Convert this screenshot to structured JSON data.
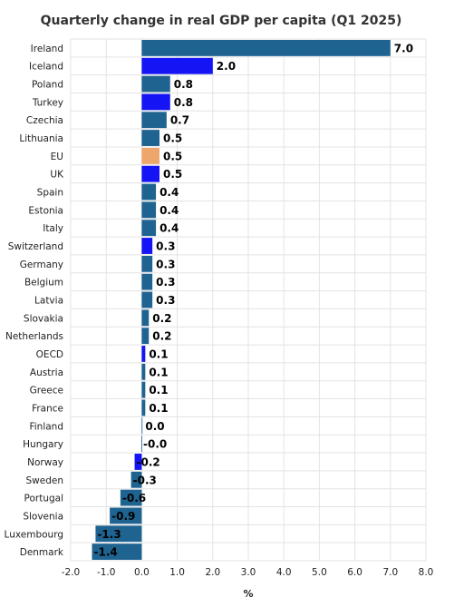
{
  "chart_data": {
    "type": "bar",
    "orientation": "horizontal",
    "title": "Quarterly change in real GDP per capita (Q1 2025)",
    "xlabel": "%",
    "ylabel": "",
    "xlim": [
      -2.0,
      8.0
    ],
    "xticks": [
      "-2.0",
      "-1.0",
      "0.0",
      "1.0",
      "2.0",
      "3.0",
      "4.0",
      "5.0",
      "6.0",
      "7.0",
      "8.0"
    ],
    "xtick_values": [
      -2,
      -1,
      0,
      1,
      2,
      3,
      4,
      5,
      6,
      7,
      8
    ],
    "grid": true,
    "legend": "none",
    "categories": [
      "Ireland",
      "Iceland",
      "Poland",
      "Turkey",
      "Czechia",
      "Lithuania",
      "EU",
      "UK",
      "Spain",
      "Estonia",
      "Italy",
      "Switzerland",
      "Germany",
      "Belgium",
      "Latvia",
      "Slovakia",
      "Netherlands",
      "OECD",
      "Austria",
      "Greece",
      "France",
      "Finland",
      "Hungary",
      "Norway",
      "Sweden",
      "Portugal",
      "Slovenia",
      "Luxembourg",
      "Denmark"
    ],
    "values": [
      7.0,
      2.0,
      0.8,
      0.8,
      0.7,
      0.5,
      0.5,
      0.5,
      0.4,
      0.4,
      0.4,
      0.3,
      0.3,
      0.3,
      0.3,
      0.2,
      0.2,
      0.1,
      0.1,
      0.1,
      0.1,
      0.0,
      -0.01,
      -0.2,
      -0.3,
      -0.6,
      -0.9,
      -1.3,
      -1.4
    ],
    "value_labels": [
      "7.0",
      "2.0",
      "0.8",
      "0.8",
      "0.7",
      "0.5",
      "0.5",
      "0.5",
      "0.4",
      "0.4",
      "0.4",
      "0.3",
      "0.3",
      "0.3",
      "0.3",
      "0.2",
      "0.2",
      "0.1",
      "0.1",
      "0.1",
      "0.1",
      "0.0",
      "-0.0",
      "-0.2",
      "-0.3",
      "-0.6",
      "-0.9",
      "-1.3",
      "-1.4"
    ],
    "bar_colors": [
      "#1f6391",
      "#1414f5",
      "#1f6391",
      "#1414f5",
      "#1f6391",
      "#1f6391",
      "#eda66c",
      "#1414f5",
      "#1f6391",
      "#1f6391",
      "#1f6391",
      "#1414f5",
      "#1f6391",
      "#1f6391",
      "#1f6391",
      "#1f6391",
      "#1f6391",
      "#1414f5",
      "#1f6391",
      "#1f6391",
      "#1f6391",
      "#1f6391",
      "#1f6391",
      "#1414f5",
      "#1f6391",
      "#1f6391",
      "#1f6391",
      "#1f6391",
      "#1f6391"
    ],
    "colors": {
      "default": "#1f6391",
      "highlight_non_eu": "#1414f5",
      "eu": "#eda66c",
      "grid": "#e3e3e3"
    }
  }
}
